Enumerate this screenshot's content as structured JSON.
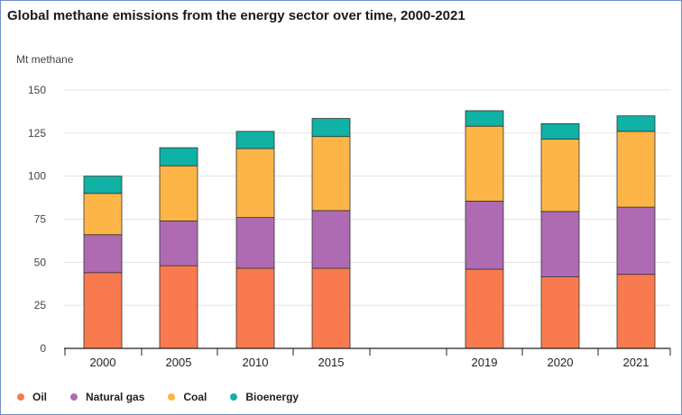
{
  "chart_data": {
    "type": "bar",
    "stacked": true,
    "title": "Global methane emissions from the energy sector over time, 2000-2021",
    "ylabel": "Mt methane",
    "xlabel": "",
    "ylim": [
      0,
      150
    ],
    "yticks": [
      "0",
      "25",
      "50",
      "75",
      "100",
      "125",
      "150"
    ],
    "grid": true,
    "legend_position": "bottom-left",
    "categories": [
      "2000",
      "2005",
      "2010",
      "2015",
      "2019",
      "2020",
      "2021"
    ],
    "series": [
      {
        "name": "Oil",
        "color": "#f97a4e",
        "values": [
          44,
          48,
          46.5,
          46.5,
          46,
          41.5,
          43
        ]
      },
      {
        "name": "Natural gas",
        "color": "#ae6bb3",
        "values": [
          22,
          26,
          29.5,
          33.5,
          39.5,
          38,
          39
        ]
      },
      {
        "name": "Coal",
        "color": "#fdb547",
        "values": [
          24,
          32,
          40,
          43,
          43.5,
          42,
          44
        ]
      },
      {
        "name": "Bioenergy",
        "color": "#0fb2a4",
        "values": [
          10,
          10.5,
          10,
          10.5,
          9,
          9,
          9
        ]
      }
    ]
  }
}
